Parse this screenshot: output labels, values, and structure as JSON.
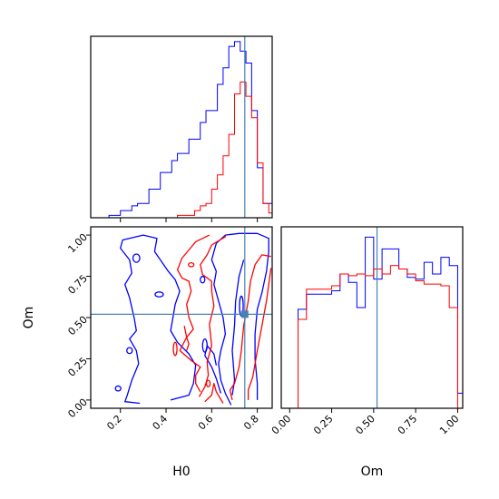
{
  "colors": {
    "blue": "#0000ff",
    "red": "#ff0000",
    "truth": "#4682b4",
    "axis": "#000000"
  },
  "truth": {
    "H0": 0.745,
    "Om": 0.52
  },
  "chart_data": [
    {
      "id": "hist-h0",
      "type": "histogram-step",
      "panel": "top-left",
      "xlim": [
        0.07,
        0.865
      ],
      "xticks": [
        0.2,
        0.4,
        0.6,
        0.8
      ],
      "x_edges": [
        0.1,
        0.125,
        0.15,
        0.175,
        0.2,
        0.225,
        0.25,
        0.275,
        0.3,
        0.325,
        0.35,
        0.375,
        0.4,
        0.425,
        0.45,
        0.475,
        0.5,
        0.525,
        0.55,
        0.575,
        0.6,
        0.625,
        0.65,
        0.675,
        0.7,
        0.725,
        0.75,
        0.775,
        0.8,
        0.825,
        0.85,
        0.875
      ],
      "series": [
        {
          "color_key": "blue",
          "values": [
            0,
            0,
            1,
            1,
            3,
            3,
            5,
            6,
            6,
            12,
            12,
            19,
            19,
            24,
            27,
            27,
            33,
            33,
            40,
            45,
            45,
            56,
            63,
            72,
            74,
            70,
            65,
            45,
            21,
            6,
            6
          ]
        },
        {
          "color_key": "red",
          "values": [
            0,
            0,
            0,
            0,
            0,
            0,
            0,
            0,
            0,
            0,
            0,
            0,
            0,
            0,
            1,
            1,
            1,
            3,
            5,
            6,
            12,
            18,
            26,
            35,
            52,
            57,
            51,
            42,
            23,
            6,
            2
          ]
        }
      ],
      "ymax": 74
    },
    {
      "id": "hist-om",
      "type": "histogram-step",
      "panel": "bottom-right",
      "xlim": [
        -0.05,
        1.03
      ],
      "xticks": [
        0.0,
        0.25,
        0.5,
        0.75,
        1.0
      ],
      "xtick_labels": [
        "0.00",
        "0.25",
        "0.50",
        "0.75",
        "1.00"
      ],
      "xlabel": "Om",
      "x_edges": [
        0.0,
        0.05,
        0.1,
        0.15,
        0.2,
        0.25,
        0.3,
        0.35,
        0.4,
        0.45,
        0.5,
        0.55,
        0.6,
        0.65,
        0.7,
        0.75,
        0.8,
        0.85,
        0.9,
        0.95,
        1.0,
        1.05
      ],
      "series": [
        {
          "color_key": "blue",
          "values": [
            0,
            59,
            68,
            68,
            68,
            70,
            80,
            75,
            60,
            102,
            77,
            95,
            95,
            83,
            78,
            77,
            87,
            80,
            90,
            85,
            9
          ]
        },
        {
          "color_key": "red",
          "values": [
            0,
            53,
            71,
            71,
            71,
            73,
            80,
            79,
            80,
            79,
            83,
            80,
            85,
            83,
            80,
            76,
            74,
            74,
            73,
            60,
            0
          ]
        }
      ],
      "ymax": 105
    },
    {
      "id": "contour-h0-om",
      "type": "contour",
      "panel": "bottom-left",
      "xlim": [
        0.07,
        0.865
      ],
      "ylim": [
        -0.05,
        1.05
      ],
      "xticks": [
        0.2,
        0.4,
        0.6,
        0.8
      ],
      "yticks": [
        0.0,
        0.25,
        0.5,
        0.75,
        1.0
      ],
      "ytick_labels": [
        "0.00",
        "0.25",
        "0.50",
        "0.75",
        "1.00"
      ],
      "xlabel": "H0",
      "ylabel": "Om",
      "truth_point": [
        0.745,
        0.52
      ],
      "contours": [
        {
          "color_key": "blue",
          "points": [
            [
              0.285,
              -0.02
            ],
            [
              0.22,
              -0.01
            ],
            [
              0.23,
              0.03
            ],
            [
              0.25,
              0.12
            ],
            [
              0.28,
              0.22
            ],
            [
              0.27,
              0.3
            ],
            [
              0.24,
              0.37
            ],
            [
              0.27,
              0.42
            ],
            [
              0.26,
              0.5
            ],
            [
              0.24,
              0.62
            ],
            [
              0.22,
              0.7
            ],
            [
              0.25,
              0.77
            ],
            [
              0.24,
              0.85
            ],
            [
              0.2,
              0.92
            ],
            [
              0.21,
              0.97
            ],
            [
              0.3,
              1.0
            ],
            [
              0.36,
              0.98
            ],
            [
              0.35,
              0.9
            ],
            [
              0.38,
              0.84
            ],
            [
              0.41,
              0.78
            ],
            [
              0.44,
              0.73
            ],
            [
              0.46,
              0.66
            ],
            [
              0.44,
              0.58
            ],
            [
              0.43,
              0.5
            ],
            [
              0.42,
              0.42
            ],
            [
              0.45,
              0.35
            ],
            [
              0.5,
              0.28
            ],
            [
              0.53,
              0.21
            ],
            [
              0.52,
              0.1
            ],
            [
              0.5,
              0.03
            ],
            [
              0.42,
              0.0
            ]
          ]
        },
        {
          "color_key": "blue",
          "points": [
            [
              0.685,
              -0.03
            ],
            [
              0.66,
              0.04
            ],
            [
              0.64,
              0.12
            ],
            [
              0.63,
              0.22
            ],
            [
              0.64,
              0.3
            ],
            [
              0.66,
              0.4
            ],
            [
              0.65,
              0.5
            ],
            [
              0.63,
              0.6
            ],
            [
              0.61,
              0.7
            ],
            [
              0.62,
              0.78
            ],
            [
              0.6,
              0.85
            ],
            [
              0.62,
              0.95
            ],
            [
              0.66,
              1.0
            ],
            [
              0.72,
              1.01
            ],
            [
              0.8,
              1.01
            ],
            [
              0.85,
              0.98
            ],
            [
              0.85,
              0.9
            ],
            [
              0.84,
              0.78
            ],
            [
              0.82,
              0.65
            ],
            [
              0.8,
              0.55
            ],
            [
              0.79,
              0.4
            ],
            [
              0.79,
              0.25
            ],
            [
              0.8,
              0.1
            ],
            [
              0.8,
              0.0
            ]
          ]
        },
        {
          "color_key": "blue",
          "points": [
            [
              0.74,
              0.85
            ],
            [
              0.72,
              0.75
            ],
            [
              0.705,
              0.6
            ],
            [
              0.7,
              0.45
            ],
            [
              0.69,
              0.3
            ],
            [
              0.7,
              0.12
            ],
            [
              0.69,
              0.03
            ]
          ]
        },
        {
          "color_key": "blue",
          "points": [
            [
              0.64,
              0.04
            ],
            [
              0.62,
              0.13
            ],
            [
              0.6,
              0.2
            ],
            [
              0.57,
              0.27
            ],
            [
              0.58,
              0.33
            ],
            [
              0.61,
              0.28
            ],
            [
              0.62,
              0.21
            ]
          ]
        },
        {
          "color_key": "red",
          "points": [
            [
              0.545,
              0.02
            ],
            [
              0.57,
              0.08
            ],
            [
              0.585,
              0.15
            ],
            [
              0.58,
              0.23
            ],
            [
              0.6,
              0.33
            ],
            [
              0.59,
              0.46
            ],
            [
              0.61,
              0.57
            ],
            [
              0.6,
              0.66
            ],
            [
              0.6,
              0.72
            ],
            [
              0.56,
              0.76
            ],
            [
              0.55,
              0.82
            ],
            [
              0.58,
              0.88
            ],
            [
              0.6,
              0.94
            ],
            [
              0.66,
              0.99
            ],
            [
              0.66,
              1.0
            ]
          ]
        },
        {
          "color_key": "red",
          "points": [
            [
              0.46,
              0.3
            ],
            [
              0.51,
              0.24
            ],
            [
              0.55,
              0.2
            ],
            [
              0.53,
              0.15
            ],
            [
              0.53,
              0.1
            ],
            [
              0.55,
              0.05
            ]
          ]
        },
        {
          "color_key": "red",
          "points": [
            [
              0.46,
              0.3
            ],
            [
              0.49,
              0.38
            ],
            [
              0.52,
              0.43
            ],
            [
              0.5,
              0.5
            ],
            [
              0.49,
              0.58
            ],
            [
              0.51,
              0.66
            ],
            [
              0.5,
              0.72
            ],
            [
              0.47,
              0.74
            ],
            [
              0.45,
              0.79
            ],
            [
              0.47,
              0.86
            ],
            [
              0.5,
              0.91
            ],
            [
              0.53,
              0.96
            ],
            [
              0.59,
              1.0
            ]
          ]
        },
        {
          "color_key": "red",
          "points": [
            [
              0.57,
              -0.01
            ],
            [
              0.6,
              0.03
            ],
            [
              0.61,
              0.1
            ],
            [
              0.62,
              0.05
            ],
            [
              0.65,
              -0.02
            ]
          ]
        },
        {
          "color_key": "red",
          "points": [
            [
              0.69,
              0.0
            ],
            [
              0.68,
              0.06
            ],
            [
              0.7,
              0.1
            ],
            [
              0.72,
              0.2
            ],
            [
              0.73,
              0.3
            ],
            [
              0.74,
              0.45
            ],
            [
              0.76,
              0.6
            ],
            [
              0.77,
              0.72
            ],
            [
              0.79,
              0.82
            ],
            [
              0.82,
              0.88
            ],
            [
              0.86,
              0.87
            ]
          ]
        },
        {
          "color_key": "red",
          "points": [
            [
              0.76,
              0.0
            ],
            [
              0.76,
              0.06
            ],
            [
              0.78,
              0.14
            ],
            [
              0.8,
              0.3
            ],
            [
              0.82,
              0.45
            ],
            [
              0.84,
              0.6
            ],
            [
              0.86,
              0.8
            ]
          ]
        },
        {
          "color_key": "red",
          "points": [
            [
              0.48,
              0.45
            ],
            [
              0.49,
              0.38
            ],
            [
              0.5,
              0.34
            ],
            [
              0.49,
              0.3
            ]
          ]
        }
      ],
      "small_loops": [
        {
          "color_key": "blue",
          "cx": 0.27,
          "cy": 0.86,
          "rx": 0.015,
          "ry": 0.025
        },
        {
          "color_key": "blue",
          "cx": 0.37,
          "cy": 0.64,
          "rx": 0.018,
          "ry": 0.015
        },
        {
          "color_key": "blue",
          "cx": 0.19,
          "cy": 0.07,
          "rx": 0.012,
          "ry": 0.015
        },
        {
          "color_key": "blue",
          "cx": 0.24,
          "cy": 0.3,
          "rx": 0.012,
          "ry": 0.018
        },
        {
          "color_key": "blue",
          "cx": 0.56,
          "cy": 0.73,
          "rx": 0.01,
          "ry": 0.02
        },
        {
          "color_key": "blue",
          "cx": 0.57,
          "cy": 0.33,
          "rx": 0.01,
          "ry": 0.04
        },
        {
          "color_key": "blue",
          "cx": 0.73,
          "cy": 0.57,
          "rx": 0.008,
          "ry": 0.06
        },
        {
          "color_key": "red",
          "cx": 0.51,
          "cy": 0.82,
          "rx": 0.012,
          "ry": 0.012
        },
        {
          "color_key": "red",
          "cx": 0.44,
          "cy": 0.31,
          "rx": 0.008,
          "ry": 0.04
        },
        {
          "color_key": "red",
          "cx": 0.585,
          "cy": 0.1,
          "rx": 0.008,
          "ry": 0.02
        }
      ]
    }
  ]
}
